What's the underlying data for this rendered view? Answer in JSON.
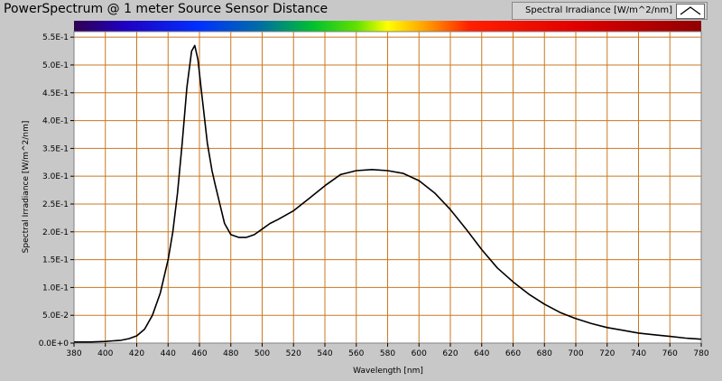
{
  "window": {
    "title": "PowerSpectrum @ 1 meter Source Sensor Distance"
  },
  "legend": {
    "label": "Spectral Irradiance [W/m^2/nm]",
    "placement": "top-right"
  },
  "colors": {
    "background": "#c8c8c8",
    "plot_background": "#ffffff",
    "grid": "#c87820",
    "line": "#000000"
  },
  "chart_data": {
    "type": "line",
    "xlabel": "Wavelength [nm]",
    "ylabel": "Spectral Irradiance [W/m^2/nm]",
    "xlim": [
      380,
      780
    ],
    "ylim": [
      0,
      0.56
    ],
    "grid": true,
    "x_ticks": [
      380,
      400,
      420,
      440,
      460,
      480,
      500,
      520,
      540,
      560,
      580,
      600,
      620,
      640,
      660,
      680,
      700,
      720,
      740,
      760,
      780
    ],
    "y_ticks": [
      0,
      0.05,
      0.1,
      0.15,
      0.2,
      0.25,
      0.3,
      0.35,
      0.4,
      0.45,
      0.5,
      0.55
    ],
    "y_tick_labels": [
      "0.0E+0",
      "5.0E-2",
      "1.0E-1",
      "1.5E-1",
      "2.0E-1",
      "2.5E-1",
      "3.0E-1",
      "3.5E-1",
      "4.0E-1",
      "4.5E-1",
      "5.0E-1",
      "5.5E-1"
    ],
    "series": [
      {
        "name": "Spectral Irradiance [W/m^2/nm]",
        "x": [
          380,
          390,
          400,
          405,
          410,
          415,
          420,
          425,
          430,
          435,
          440,
          443,
          446,
          449,
          452,
          455,
          457,
          459,
          461,
          463,
          465,
          468,
          470,
          473,
          476,
          480,
          485,
          490,
          495,
          500,
          505,
          510,
          520,
          530,
          540,
          550,
          560,
          570,
          580,
          590,
          600,
          610,
          620,
          630,
          640,
          650,
          660,
          670,
          680,
          690,
          700,
          710,
          720,
          730,
          740,
          750,
          760,
          770,
          780
        ],
        "y": [
          0.002,
          0.002,
          0.003,
          0.004,
          0.005,
          0.008,
          0.013,
          0.025,
          0.05,
          0.09,
          0.15,
          0.2,
          0.27,
          0.36,
          0.46,
          0.525,
          0.535,
          0.51,
          0.46,
          0.41,
          0.36,
          0.31,
          0.285,
          0.25,
          0.215,
          0.195,
          0.19,
          0.19,
          0.195,
          0.205,
          0.215,
          0.222,
          0.238,
          0.26,
          0.283,
          0.303,
          0.31,
          0.312,
          0.31,
          0.305,
          0.292,
          0.27,
          0.24,
          0.205,
          0.168,
          0.135,
          0.11,
          0.088,
          0.07,
          0.055,
          0.044,
          0.035,
          0.028,
          0.023,
          0.018,
          0.015,
          0.012,
          0.009,
          0.007
        ]
      }
    ]
  }
}
